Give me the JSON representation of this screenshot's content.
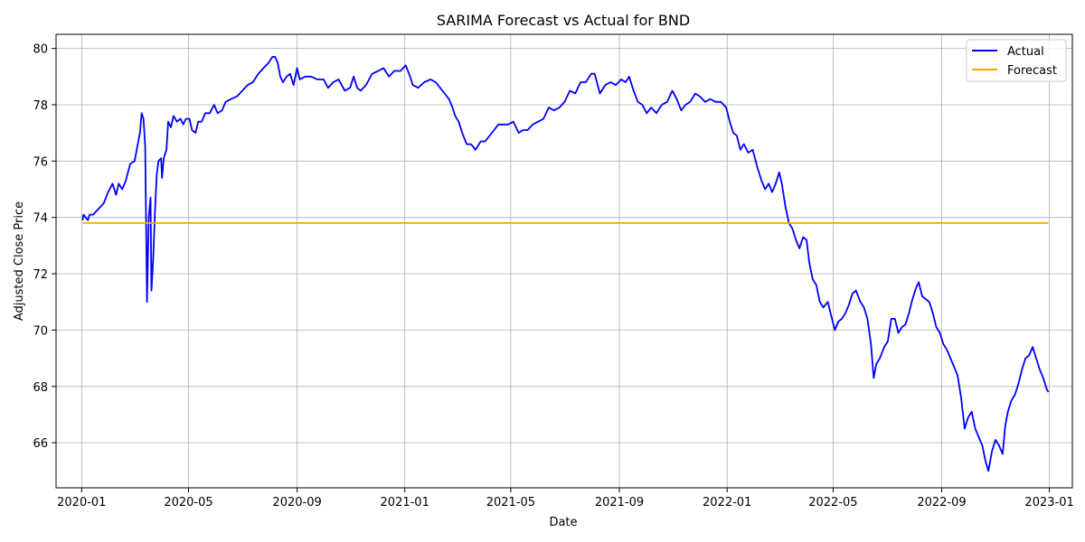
{
  "chart_data": {
    "type": "line",
    "title": "SARIMA Forecast vs Actual for BND",
    "xlabel": "Date",
    "ylabel": "Adjusted Close Price",
    "xlim": [
      "2019-12-03",
      "2023-01-27"
    ],
    "ylim": [
      64.4,
      80.5
    ],
    "grid": true,
    "legend_position": "top-right",
    "x_ticks": [
      "2020-01-01",
      "2020-05-01",
      "2020-09-01",
      "2021-01-01",
      "2021-05-01",
      "2021-09-01",
      "2022-01-01",
      "2022-05-01",
      "2022-09-01",
      "2023-01-01"
    ],
    "x_tick_labels": [
      "2020-01",
      "2020-05",
      "2020-09",
      "2021-01",
      "2021-05",
      "2021-09",
      "2022-01",
      "2022-05",
      "2022-09",
      "2023-01"
    ],
    "y_ticks": [
      66,
      68,
      70,
      72,
      74,
      76,
      78,
      80
    ],
    "y_tick_labels": [
      "66",
      "68",
      "70",
      "72",
      "74",
      "76",
      "78",
      "80"
    ],
    "series": [
      {
        "name": "Actual",
        "color": "#0000ff",
        "points": [
          [
            "2020-01-02",
            73.9
          ],
          [
            "2020-01-03",
            74.1
          ],
          [
            "2020-01-08",
            73.9
          ],
          [
            "2020-01-10",
            74.1
          ],
          [
            "2020-01-14",
            74.1
          ],
          [
            "2020-01-20",
            74.3
          ],
          [
            "2020-01-26",
            74.5
          ],
          [
            "2020-01-31",
            74.9
          ],
          [
            "2020-02-05",
            75.2
          ],
          [
            "2020-02-09",
            74.8
          ],
          [
            "2020-02-12",
            75.2
          ],
          [
            "2020-02-16",
            75.0
          ],
          [
            "2020-02-20",
            75.3
          ],
          [
            "2020-02-25",
            75.9
          ],
          [
            "2020-03-01",
            76.0
          ],
          [
            "2020-03-04",
            76.5
          ],
          [
            "2020-03-07",
            77.0
          ],
          [
            "2020-03-09",
            77.7
          ],
          [
            "2020-03-11",
            77.5
          ],
          [
            "2020-03-13",
            76.5
          ],
          [
            "2020-03-15",
            71.0
          ],
          [
            "2020-03-17",
            74.0
          ],
          [
            "2020-03-19",
            74.7
          ],
          [
            "2020-03-20",
            71.4
          ],
          [
            "2020-03-22",
            72.5
          ],
          [
            "2020-03-24",
            74.2
          ],
          [
            "2020-03-26",
            75.5
          ],
          [
            "2020-03-28",
            76.0
          ],
          [
            "2020-03-31",
            76.1
          ],
          [
            "2020-04-01",
            75.4
          ],
          [
            "2020-04-03",
            76.1
          ],
          [
            "2020-04-06",
            76.4
          ],
          [
            "2020-04-08",
            77.4
          ],
          [
            "2020-04-11",
            77.2
          ],
          [
            "2020-04-14",
            77.6
          ],
          [
            "2020-04-18",
            77.4
          ],
          [
            "2020-04-22",
            77.5
          ],
          [
            "2020-04-25",
            77.3
          ],
          [
            "2020-04-28",
            77.5
          ],
          [
            "2020-05-02",
            77.5
          ],
          [
            "2020-05-05",
            77.1
          ],
          [
            "2020-05-09",
            77.0
          ],
          [
            "2020-05-12",
            77.4
          ],
          [
            "2020-05-16",
            77.4
          ],
          [
            "2020-05-20",
            77.7
          ],
          [
            "2020-05-25",
            77.7
          ],
          [
            "2020-05-30",
            78.0
          ],
          [
            "2020-06-03",
            77.7
          ],
          [
            "2020-06-08",
            77.8
          ],
          [
            "2020-06-12",
            78.1
          ],
          [
            "2020-06-18",
            78.2
          ],
          [
            "2020-06-25",
            78.3
          ],
          [
            "2020-07-01",
            78.5
          ],
          [
            "2020-07-07",
            78.7
          ],
          [
            "2020-07-13",
            78.8
          ],
          [
            "2020-07-19",
            79.1
          ],
          [
            "2020-07-25",
            79.3
          ],
          [
            "2020-07-31",
            79.5
          ],
          [
            "2020-08-04",
            79.7
          ],
          [
            "2020-08-07",
            79.7
          ],
          [
            "2020-08-10",
            79.5
          ],
          [
            "2020-08-13",
            79.0
          ],
          [
            "2020-08-16",
            78.8
          ],
          [
            "2020-08-20",
            79.0
          ],
          [
            "2020-08-24",
            79.1
          ],
          [
            "2020-08-28",
            78.7
          ],
          [
            "2020-09-01",
            79.3
          ],
          [
            "2020-09-04",
            78.9
          ],
          [
            "2020-09-10",
            79.0
          ],
          [
            "2020-09-17",
            79.0
          ],
          [
            "2020-09-24",
            78.9
          ],
          [
            "2020-10-01",
            78.9
          ],
          [
            "2020-10-06",
            78.6
          ],
          [
            "2020-10-12",
            78.8
          ],
          [
            "2020-10-18",
            78.9
          ],
          [
            "2020-10-25",
            78.5
          ],
          [
            "2020-10-31",
            78.6
          ],
          [
            "2020-11-04",
            79.0
          ],
          [
            "2020-11-08",
            78.6
          ],
          [
            "2020-11-12",
            78.5
          ],
          [
            "2020-11-18",
            78.7
          ],
          [
            "2020-11-25",
            79.1
          ],
          [
            "2020-12-02",
            79.2
          ],
          [
            "2020-12-08",
            79.3
          ],
          [
            "2020-12-14",
            79.0
          ],
          [
            "2020-12-20",
            79.2
          ],
          [
            "2020-12-27",
            79.2
          ],
          [
            "2021-01-02",
            79.4
          ],
          [
            "2021-01-07",
            79.0
          ],
          [
            "2021-01-10",
            78.7
          ],
          [
            "2021-01-16",
            78.6
          ],
          [
            "2021-01-23",
            78.8
          ],
          [
            "2021-01-30",
            78.9
          ],
          [
            "2021-02-05",
            78.8
          ],
          [
            "2021-02-10",
            78.6
          ],
          [
            "2021-02-15",
            78.4
          ],
          [
            "2021-02-20",
            78.2
          ],
          [
            "2021-02-24",
            77.9
          ],
          [
            "2021-02-27",
            77.6
          ],
          [
            "2021-03-03",
            77.4
          ],
          [
            "2021-03-07",
            77.0
          ],
          [
            "2021-03-12",
            76.6
          ],
          [
            "2021-03-17",
            76.6
          ],
          [
            "2021-03-22",
            76.4
          ],
          [
            "2021-03-28",
            76.7
          ],
          [
            "2021-04-02",
            76.7
          ],
          [
            "2021-04-07",
            76.9
          ],
          [
            "2021-04-12",
            77.1
          ],
          [
            "2021-04-17",
            77.3
          ],
          [
            "2021-04-22",
            77.3
          ],
          [
            "2021-04-28",
            77.3
          ],
          [
            "2021-05-04",
            77.4
          ],
          [
            "2021-05-10",
            77.0
          ],
          [
            "2021-05-15",
            77.1
          ],
          [
            "2021-05-20",
            77.1
          ],
          [
            "2021-05-26",
            77.3
          ],
          [
            "2021-06-01",
            77.4
          ],
          [
            "2021-06-07",
            77.5
          ],
          [
            "2021-06-13",
            77.9
          ],
          [
            "2021-06-19",
            77.8
          ],
          [
            "2021-06-25",
            77.9
          ],
          [
            "2021-07-01",
            78.1
          ],
          [
            "2021-07-07",
            78.5
          ],
          [
            "2021-07-13",
            78.4
          ],
          [
            "2021-07-19",
            78.8
          ],
          [
            "2021-07-25",
            78.8
          ],
          [
            "2021-07-31",
            79.1
          ],
          [
            "2021-08-04",
            79.1
          ],
          [
            "2021-08-10",
            78.4
          ],
          [
            "2021-08-16",
            78.7
          ],
          [
            "2021-08-22",
            78.8
          ],
          [
            "2021-08-28",
            78.7
          ],
          [
            "2021-09-03",
            78.9
          ],
          [
            "2021-09-08",
            78.8
          ],
          [
            "2021-09-12",
            79.0
          ],
          [
            "2021-09-17",
            78.5
          ],
          [
            "2021-09-22",
            78.1
          ],
          [
            "2021-09-27",
            78.0
          ],
          [
            "2021-10-02",
            77.7
          ],
          [
            "2021-10-07",
            77.9
          ],
          [
            "2021-10-13",
            77.7
          ],
          [
            "2021-10-19",
            78.0
          ],
          [
            "2021-10-25",
            78.1
          ],
          [
            "2021-10-31",
            78.5
          ],
          [
            "2021-11-05",
            78.2
          ],
          [
            "2021-11-10",
            77.8
          ],
          [
            "2021-11-15",
            78.0
          ],
          [
            "2021-11-20",
            78.1
          ],
          [
            "2021-11-26",
            78.4
          ],
          [
            "2021-12-01",
            78.3
          ],
          [
            "2021-12-07",
            78.1
          ],
          [
            "2021-12-13",
            78.2
          ],
          [
            "2021-12-19",
            78.1
          ],
          [
            "2021-12-25",
            78.1
          ],
          [
            "2021-12-31",
            77.9
          ],
          [
            "2022-01-04",
            77.4
          ],
          [
            "2022-01-08",
            77.0
          ],
          [
            "2022-01-12",
            76.9
          ],
          [
            "2022-01-16",
            76.4
          ],
          [
            "2022-01-20",
            76.6
          ],
          [
            "2022-01-25",
            76.3
          ],
          [
            "2022-01-30",
            76.4
          ],
          [
            "2022-02-04",
            75.8
          ],
          [
            "2022-02-09",
            75.3
          ],
          [
            "2022-02-13",
            75.0
          ],
          [
            "2022-02-17",
            75.2
          ],
          [
            "2022-02-21",
            74.9
          ],
          [
            "2022-02-25",
            75.2
          ],
          [
            "2022-03-01",
            75.6
          ],
          [
            "2022-03-04",
            75.2
          ],
          [
            "2022-03-08",
            74.4
          ],
          [
            "2022-03-12",
            73.8
          ],
          [
            "2022-03-16",
            73.6
          ],
          [
            "2022-03-20",
            73.2
          ],
          [
            "2022-03-24",
            72.9
          ],
          [
            "2022-03-28",
            73.3
          ],
          [
            "2022-04-01",
            73.2
          ],
          [
            "2022-04-04",
            72.4
          ],
          [
            "2022-04-08",
            71.8
          ],
          [
            "2022-04-12",
            71.6
          ],
          [
            "2022-04-16",
            71.0
          ],
          [
            "2022-04-20",
            70.8
          ],
          [
            "2022-04-25",
            71.0
          ],
          [
            "2022-04-29",
            70.5
          ],
          [
            "2022-05-03",
            70.0
          ],
          [
            "2022-05-07",
            70.3
          ],
          [
            "2022-05-11",
            70.4
          ],
          [
            "2022-05-15",
            70.6
          ],
          [
            "2022-05-19",
            70.9
          ],
          [
            "2022-05-23",
            71.3
          ],
          [
            "2022-05-27",
            71.4
          ],
          [
            "2022-06-01",
            71.0
          ],
          [
            "2022-06-05",
            70.8
          ],
          [
            "2022-06-09",
            70.4
          ],
          [
            "2022-06-13",
            69.5
          ],
          [
            "2022-06-16",
            68.3
          ],
          [
            "2022-06-19",
            68.8
          ],
          [
            "2022-06-23",
            69.0
          ],
          [
            "2022-06-28",
            69.4
          ],
          [
            "2022-07-02",
            69.6
          ],
          [
            "2022-07-06",
            70.4
          ],
          [
            "2022-07-10",
            70.4
          ],
          [
            "2022-07-14",
            69.9
          ],
          [
            "2022-07-18",
            70.1
          ],
          [
            "2022-07-22",
            70.2
          ],
          [
            "2022-07-26",
            70.6
          ],
          [
            "2022-07-30",
            71.1
          ],
          [
            "2022-08-03",
            71.5
          ],
          [
            "2022-08-06",
            71.7
          ],
          [
            "2022-08-10",
            71.2
          ],
          [
            "2022-08-14",
            71.1
          ],
          [
            "2022-08-18",
            71.0
          ],
          [
            "2022-08-22",
            70.6
          ],
          [
            "2022-08-26",
            70.1
          ],
          [
            "2022-08-30",
            69.9
          ],
          [
            "2022-09-03",
            69.5
          ],
          [
            "2022-09-07",
            69.3
          ],
          [
            "2022-09-11",
            69.0
          ],
          [
            "2022-09-15",
            68.7
          ],
          [
            "2022-09-19",
            68.4
          ],
          [
            "2022-09-23",
            67.6
          ],
          [
            "2022-09-27",
            66.5
          ],
          [
            "2022-10-01",
            66.9
          ],
          [
            "2022-10-05",
            67.1
          ],
          [
            "2022-10-09",
            66.5
          ],
          [
            "2022-10-13",
            66.2
          ],
          [
            "2022-10-17",
            65.9
          ],
          [
            "2022-10-21",
            65.3
          ],
          [
            "2022-10-24",
            65.0
          ],
          [
            "2022-10-28",
            65.7
          ],
          [
            "2022-11-01",
            66.1
          ],
          [
            "2022-11-05",
            65.9
          ],
          [
            "2022-11-09",
            65.6
          ],
          [
            "2022-11-12",
            66.6
          ],
          [
            "2022-11-15",
            67.1
          ],
          [
            "2022-11-19",
            67.5
          ],
          [
            "2022-11-23",
            67.7
          ],
          [
            "2022-11-27",
            68.1
          ],
          [
            "2022-12-01",
            68.6
          ],
          [
            "2022-12-05",
            69.0
          ],
          [
            "2022-12-09",
            69.1
          ],
          [
            "2022-12-13",
            69.4
          ],
          [
            "2022-12-17",
            69.0
          ],
          [
            "2022-12-21",
            68.6
          ],
          [
            "2022-12-25",
            68.3
          ],
          [
            "2022-12-29",
            67.9
          ],
          [
            "2022-12-31",
            67.8
          ]
        ]
      },
      {
        "name": "Forecast",
        "color": "#ffa500",
        "points": [
          [
            "2020-01-02",
            73.8
          ],
          [
            "2022-12-31",
            73.8
          ]
        ]
      }
    ]
  }
}
